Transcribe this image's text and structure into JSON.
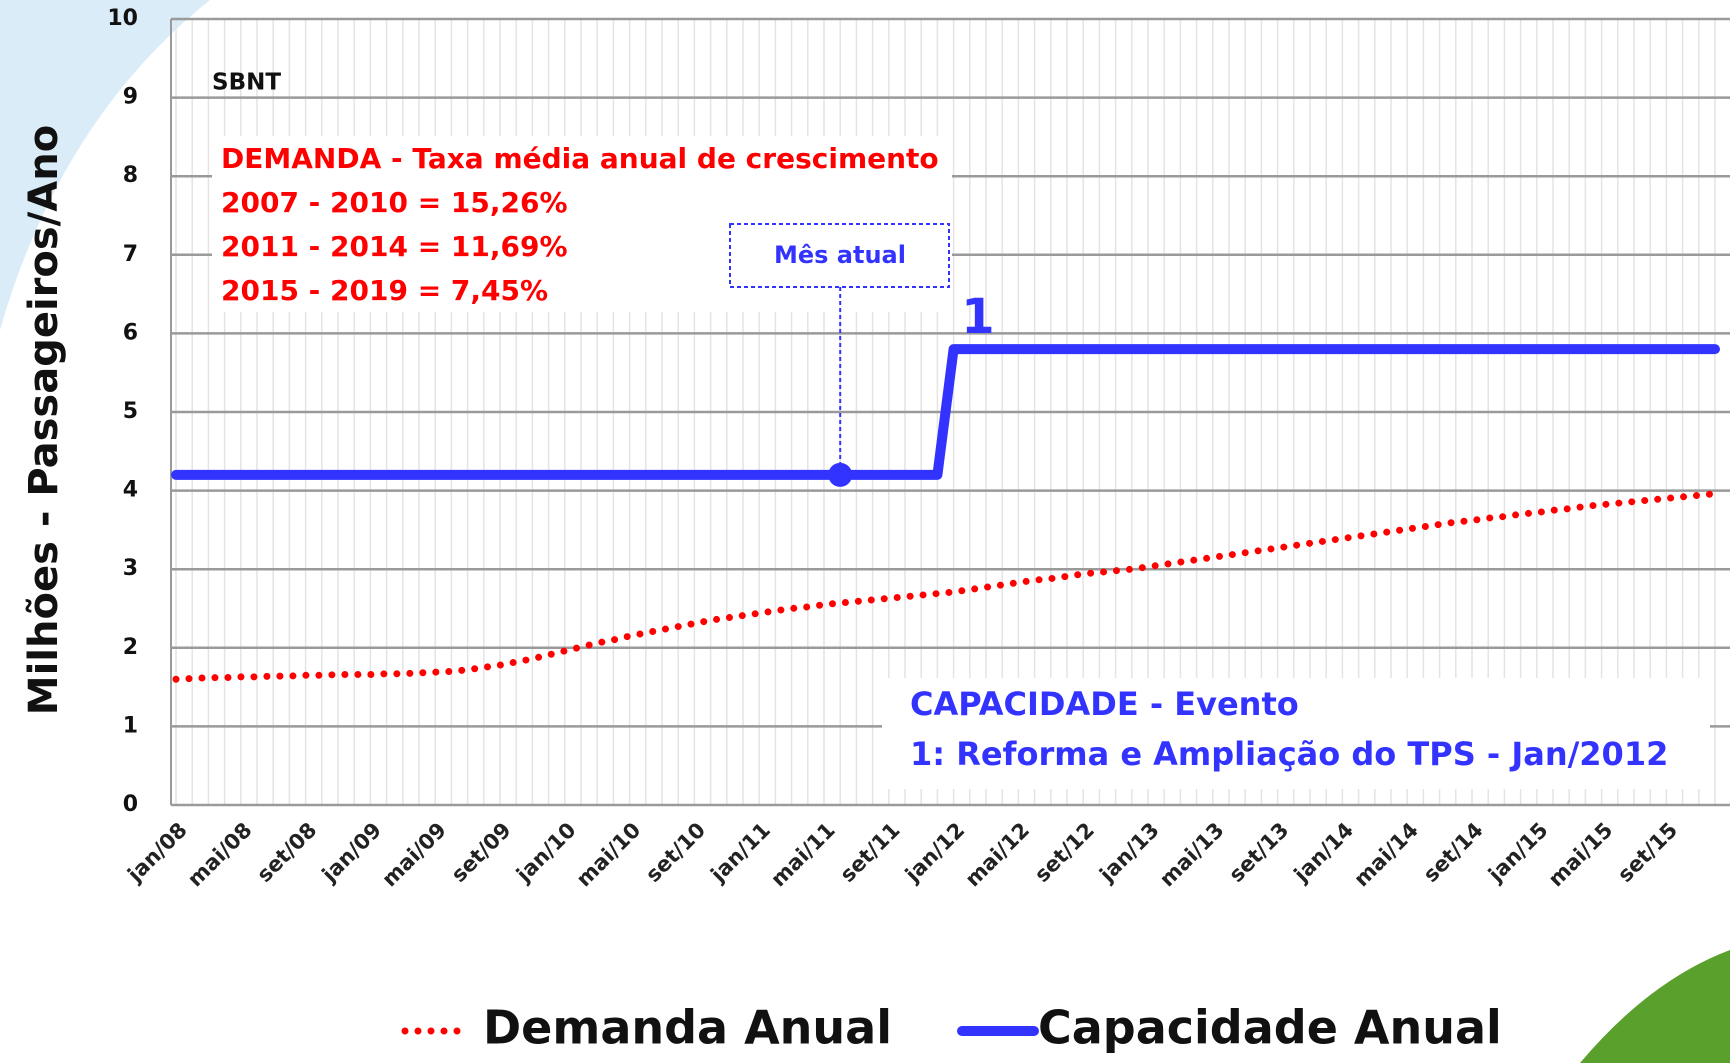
{
  "chart_data": {
    "type": "line",
    "ylabel": "Milhões - Passageiros/Ano",
    "annotations": [
      "SBNT",
      "DEMANDA - Taxa média anual de crescimento",
      "2007 - 2010 = 15,26%",
      "2011 - 2014 = 11,69%",
      "2015 - 2019 =  7,45%",
      "Mês atual",
      "1",
      "CAPACIDADE - Evento",
      "1:  Reforma e Ampliação do TPS - Jan/2012"
    ],
    "categories": [
      "jan/08",
      null,
      null,
      null,
      "mai/08",
      null,
      null,
      null,
      "set/08",
      null,
      null,
      null,
      "jan/09",
      null,
      null,
      null,
      "mai/09",
      null,
      null,
      null,
      "set/09",
      null,
      null,
      null,
      "jan/10",
      null,
      null,
      null,
      "mai/10",
      null,
      null,
      null,
      "set/10",
      null,
      null,
      null,
      "jan/11",
      null,
      null,
      null,
      "mai/11",
      null,
      null,
      null,
      "set/11",
      null,
      null,
      null,
      "jan/12",
      null,
      null,
      null,
      "mai/12",
      null,
      null,
      null,
      "set/12",
      null,
      null,
      null,
      "jan/13",
      null,
      null,
      null,
      "mai/13",
      null,
      null,
      null,
      "set/13",
      null,
      null,
      null,
      "jan/14",
      null,
      null,
      null,
      "mai/14",
      null,
      null,
      null,
      "set/14",
      null,
      null,
      null,
      "jan/15",
      null,
      null,
      null,
      "mai/15",
      null,
      null,
      null,
      "set/15",
      null,
      null,
      null
    ],
    "series": [
      {
        "name": "Demanda Anual",
        "color": "#ff0000",
        "style": "dotted",
        "values": [
          1.6,
          1.61,
          1.62,
          1.62,
          1.63,
          1.63,
          1.64,
          1.64,
          1.65,
          1.65,
          1.66,
          1.66,
          1.66,
          1.67,
          1.67,
          1.68,
          1.69,
          1.7,
          1.72,
          1.75,
          1.78,
          1.82,
          1.86,
          1.91,
          1.96,
          2.01,
          2.06,
          2.1,
          2.15,
          2.19,
          2.23,
          2.27,
          2.31,
          2.35,
          2.38,
          2.41,
          2.44,
          2.47,
          2.5,
          2.52,
          2.55,
          2.57,
          2.59,
          2.61,
          2.63,
          2.65,
          2.67,
          2.69,
          2.71,
          2.74,
          2.77,
          2.8,
          2.83,
          2.86,
          2.88,
          2.91,
          2.94,
          2.96,
          2.98,
          3.0,
          3.03,
          3.06,
          3.09,
          3.12,
          3.15,
          3.18,
          3.21,
          3.24,
          3.27,
          3.3,
          3.33,
          3.36,
          3.39,
          3.42,
          3.45,
          3.48,
          3.51,
          3.54,
          3.57,
          3.6,
          3.62,
          3.65,
          3.67,
          3.7,
          3.72,
          3.75,
          3.77,
          3.8,
          3.82,
          3.84,
          3.86,
          3.88,
          3.9,
          3.92,
          3.94,
          3.96
        ]
      },
      {
        "name": "Capacidade Anual",
        "color": "#3333ff",
        "style": "solid",
        "values": [
          4.2,
          4.2,
          4.2,
          4.2,
          4.2,
          4.2,
          4.2,
          4.2,
          4.2,
          4.2,
          4.2,
          4.2,
          4.2,
          4.2,
          4.2,
          4.2,
          4.2,
          4.2,
          4.2,
          4.2,
          4.2,
          4.2,
          4.2,
          4.2,
          4.2,
          4.2,
          4.2,
          4.2,
          4.2,
          4.2,
          4.2,
          4.2,
          4.2,
          4.2,
          4.2,
          4.2,
          4.2,
          4.2,
          4.2,
          4.2,
          4.2,
          4.2,
          4.2,
          4.2,
          4.2,
          4.2,
          4.2,
          4.2,
          5.8,
          5.8,
          5.8,
          5.8,
          5.8,
          5.8,
          5.8,
          5.8,
          5.8,
          5.8,
          5.8,
          5.8,
          5.8,
          5.8,
          5.8,
          5.8,
          5.8,
          5.8,
          5.8,
          5.8,
          5.8,
          5.8,
          5.8,
          5.8,
          5.8,
          5.8,
          5.8,
          5.8,
          5.8,
          5.8,
          5.8,
          5.8,
          5.8,
          5.8,
          5.8,
          5.8,
          5.8,
          5.8,
          5.8,
          5.8,
          5.8,
          5.8,
          5.8,
          5.8,
          5.8,
          5.8,
          5.8,
          5.8
        ]
      }
    ],
    "ylim": [
      0,
      10
    ],
    "yticks": [
      0,
      1,
      2,
      3,
      4,
      5,
      6,
      7,
      8,
      9,
      10
    ],
    "grid": true,
    "legend": "bottom"
  }
}
